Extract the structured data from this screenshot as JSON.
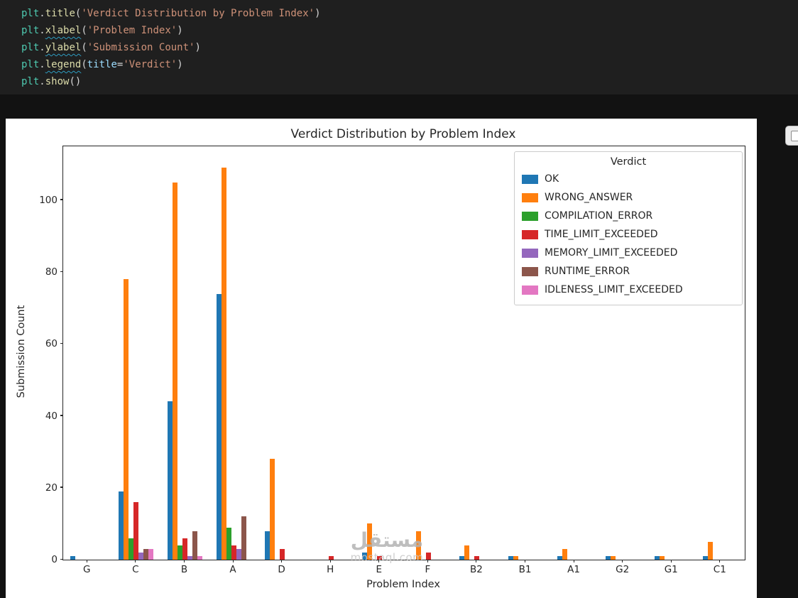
{
  "editor": {
    "lines": [
      [
        [
          "plt",
          "obj"
        ],
        [
          ".",
          "pln"
        ],
        [
          "title",
          "fn"
        ],
        [
          "(",
          "pln"
        ],
        [
          "'Verdict Distribution by Problem Index'",
          "str"
        ],
        [
          ")",
          "pln"
        ]
      ],
      [
        [
          "plt",
          "obj"
        ],
        [
          ".",
          "pln"
        ],
        [
          "xlabel",
          "fnw"
        ],
        [
          "(",
          "pln"
        ],
        [
          "'Problem Index'",
          "str"
        ],
        [
          ")",
          "pln"
        ]
      ],
      [
        [
          "plt",
          "obj"
        ],
        [
          ".",
          "pln"
        ],
        [
          "ylabel",
          "fnw"
        ],
        [
          "(",
          "pln"
        ],
        [
          "'Submission Count'",
          "str"
        ],
        [
          ")",
          "pln"
        ]
      ],
      [
        [
          "plt",
          "obj"
        ],
        [
          ".",
          "pln"
        ],
        [
          "legend",
          "fnw"
        ],
        [
          "(",
          "pln"
        ],
        [
          "title",
          "param"
        ],
        [
          "=",
          "pln"
        ],
        [
          "'Verdict'",
          "str"
        ],
        [
          ")",
          "pln"
        ]
      ],
      [
        [
          "plt",
          "obj"
        ],
        [
          ".",
          "pln"
        ],
        [
          "show",
          "fn"
        ],
        [
          "(",
          "pln"
        ],
        [
          ")",
          "pln"
        ]
      ]
    ]
  },
  "figure_toolbar": {
    "button_icon": "copy-icon"
  },
  "watermark": {
    "arabic": "مستقل",
    "domain": "mostaql.com"
  },
  "chart_data": {
    "type": "bar",
    "title": "Verdict Distribution by Problem Index",
    "xlabel": "Problem Index",
    "ylabel": "Submission Count",
    "legend_title": "Verdict",
    "legend_position": "upper right",
    "grid": false,
    "ylim": [
      0,
      115
    ],
    "yticks": [
      0,
      20,
      40,
      60,
      80,
      100
    ],
    "categories": [
      "G",
      "C",
      "B",
      "A",
      "D",
      "H",
      "E",
      "F",
      "B2",
      "B1",
      "A1",
      "G2",
      "G1",
      "C1"
    ],
    "series": [
      {
        "name": "OK",
        "color": "#1f77b4",
        "values": [
          1,
          19,
          44,
          74,
          8,
          0,
          2,
          0,
          1,
          1,
          1,
          1,
          1,
          1
        ]
      },
      {
        "name": "WRONG_ANSWER",
        "color": "#ff7f0e",
        "values": [
          0,
          78,
          105,
          109,
          28,
          0,
          10,
          8,
          4,
          1,
          3,
          1,
          1,
          5
        ]
      },
      {
        "name": "COMPILATION_ERROR",
        "color": "#2ca02c",
        "values": [
          0,
          6,
          4,
          9,
          0,
          0,
          0,
          0,
          0,
          0,
          0,
          0,
          0,
          0
        ]
      },
      {
        "name": "TIME_LIMIT_EXCEEDED",
        "color": "#d62728",
        "values": [
          0,
          16,
          6,
          4,
          3,
          1,
          1,
          2,
          1,
          0,
          0,
          0,
          0,
          0
        ]
      },
      {
        "name": "MEMORY_LIMIT_EXCEEDED",
        "color": "#9467bd",
        "values": [
          0,
          2,
          1,
          3,
          0,
          0,
          0,
          0,
          0,
          0,
          0,
          0,
          0,
          0
        ]
      },
      {
        "name": "RUNTIME_ERROR",
        "color": "#8c564b",
        "values": [
          0,
          3,
          8,
          12,
          0,
          0,
          0,
          0,
          0,
          0,
          0,
          0,
          0,
          0
        ]
      },
      {
        "name": "IDLENESS_LIMIT_EXCEEDED",
        "color": "#e377c2",
        "values": [
          0,
          3,
          1,
          0,
          0,
          0,
          0,
          0,
          0,
          0,
          0,
          0,
          0,
          0
        ]
      }
    ]
  }
}
